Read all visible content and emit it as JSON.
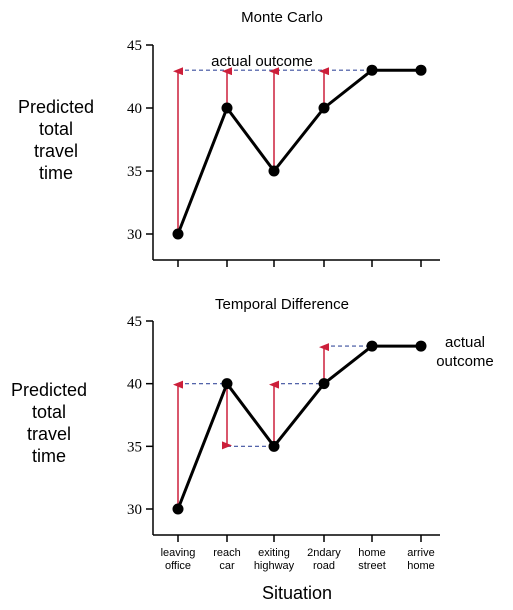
{
  "colors": {
    "line": "#000000",
    "arrow": "#cc1f3a",
    "dashed": "#3b4f9e",
    "point": "#000000"
  },
  "xlabel": "Situation",
  "categories": [
    [
      "leaving",
      "office"
    ],
    [
      "reach",
      "car"
    ],
    [
      "exiting",
      "highway"
    ],
    [
      "2ndary",
      "road"
    ],
    [
      "home",
      "street"
    ],
    [
      "arrive",
      "home"
    ]
  ],
  "chart_data": [
    {
      "type": "line",
      "title": "Monte Carlo",
      "ylabel": [
        "Predicted",
        "total",
        "travel",
        "time"
      ],
      "ylim": [
        30,
        45
      ],
      "yticks": [
        30,
        35,
        40,
        45
      ],
      "values": [
        30,
        40,
        35,
        40,
        43,
        43
      ],
      "annotation": [
        "actual outcome"
      ],
      "dashed_reference": 43,
      "arrows": [
        {
          "x": 0,
          "from": 30,
          "to": 43
        },
        {
          "x": 1,
          "from": 40,
          "to": 43
        },
        {
          "x": 2,
          "from": 35,
          "to": 43
        },
        {
          "x": 3,
          "from": 40,
          "to": 43
        }
      ]
    },
    {
      "type": "line",
      "title": "Temporal Difference",
      "ylabel": [
        "Predicted",
        "total",
        "travel",
        "time"
      ],
      "ylim": [
        30,
        45
      ],
      "yticks": [
        30,
        35,
        40,
        45
      ],
      "values": [
        30,
        40,
        35,
        40,
        43,
        43
      ],
      "annotation": [
        "actual",
        "outcome"
      ],
      "dashed_segments": [
        {
          "x_from": 0,
          "x_to": 1,
          "y": 40
        },
        {
          "x_from": 1,
          "x_to": 2,
          "y": 35
        },
        {
          "x_from": 2,
          "x_to": 3,
          "y": 40
        },
        {
          "x_from": 3,
          "x_to": 5,
          "y": 43
        }
      ],
      "arrows": [
        {
          "x": 0,
          "from": 30,
          "to": 40
        },
        {
          "x": 1,
          "from": 40,
          "to": 35
        },
        {
          "x": 2,
          "from": 35,
          "to": 40
        },
        {
          "x": 3,
          "from": 40,
          "to": 43
        }
      ]
    }
  ]
}
